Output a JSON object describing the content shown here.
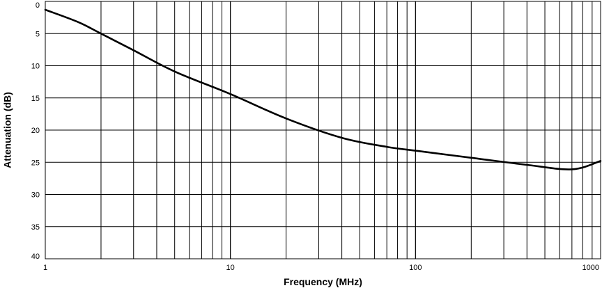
{
  "chart_data": {
    "type": "line",
    "title": "",
    "xlabel": "Frequency (MHz)",
    "ylabel": "Attenuation (dB)",
    "x_scale": "log",
    "xlim": [
      1,
      1000
    ],
    "ylim": [
      0,
      40
    ],
    "y_inverted": true,
    "grid": true,
    "x_ticks": [
      1,
      10,
      100,
      1000
    ],
    "x_tick_labels": [
      "1",
      "10",
      "100",
      "1000"
    ],
    "y_ticks": [
      0,
      5,
      10,
      15,
      20,
      25,
      30,
      35,
      40
    ],
    "y_tick_labels": [
      "0",
      "5",
      "10",
      "15",
      "20",
      "25",
      "30",
      "35",
      "40"
    ],
    "line_color": "#000000",
    "series": [
      {
        "x": [
          1,
          1.5,
          2,
          3,
          5,
          10,
          20,
          40,
          70,
          100,
          200,
          400,
          700,
          1000
        ],
        "values": [
          1.3,
          3.2,
          5.0,
          7.6,
          10.9,
          14.4,
          18.2,
          21.2,
          22.6,
          23.2,
          24.3,
          25.4,
          26.1,
          24.8
        ]
      }
    ]
  }
}
